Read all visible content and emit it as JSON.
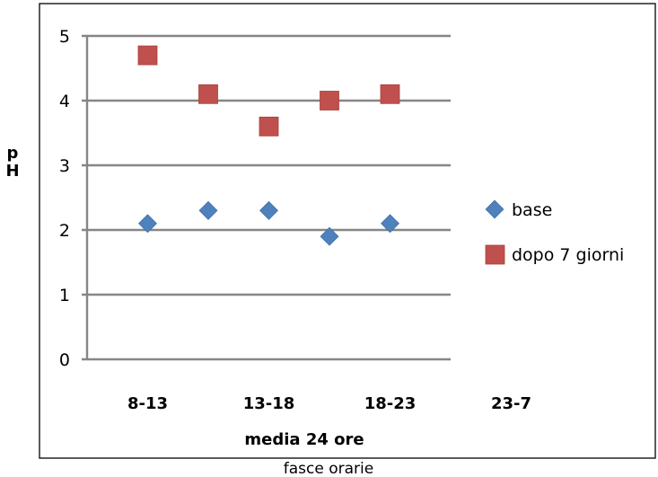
{
  "chart_data": {
    "type": "scatter",
    "categories": [
      "8-13",
      "",
      "13-18",
      "",
      "18-23",
      "",
      "23-7"
    ],
    "series": [
      {
        "name": "base",
        "color": "#4F81BD",
        "marker": "diamond",
        "points": [
          [
            1,
            2.1
          ],
          [
            2,
            2.3
          ],
          [
            3,
            2.3
          ],
          [
            4,
            1.9
          ],
          [
            5,
            2.1
          ]
        ]
      },
      {
        "name": "dopo 7 giorni",
        "color": "#C0504D",
        "marker": "square",
        "points": [
          [
            1,
            4.7
          ],
          [
            2,
            4.1
          ],
          [
            3,
            3.6
          ],
          [
            4,
            4.0
          ],
          [
            5,
            4.1
          ]
        ]
      }
    ],
    "yticks": [
      "0",
      "1",
      "2",
      "3",
      "4",
      "5"
    ],
    "ylim": [
      0,
      5
    ],
    "ylabel_lines": [
      "p",
      "H"
    ],
    "xtick_labels": [
      "8-13",
      "13-18",
      "18-23",
      "23-7"
    ],
    "xlabel_inner": "media 24 ore",
    "xlabel_outer": "fasce orarie",
    "grid": true,
    "legend_position": "right"
  }
}
